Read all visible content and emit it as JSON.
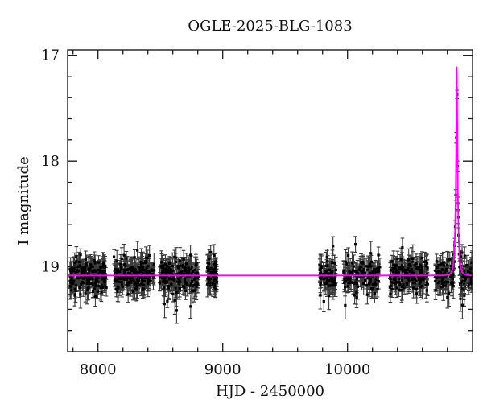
{
  "title": "OGLE-2025-BLG-1083",
  "axes": {
    "xlabel": "HJD - 2450000",
    "ylabel": "I magnitude",
    "x_range": [
      7757,
      11002
    ],
    "x_major_ticks": [
      8000,
      9000,
      10000
    ],
    "x_minor_step": 200,
    "y_range": [
      16.95,
      19.8
    ],
    "y_major_ticks": [
      17,
      18,
      19
    ],
    "y_minor_step": 0.2,
    "y_axis_note": "magnitude axis, brighter (smaller mag) is up"
  },
  "colors": {
    "background": "#ffffff",
    "frame": "#1c1c1c",
    "marker": "#000000",
    "error_bar": "#3a3a3a",
    "model_curve": "#ff00ff",
    "text": "#111111"
  },
  "chart_data": {
    "type": "scatter",
    "title": "OGLE-2025-BLG-1083",
    "xlabel": "HJD - 2450000",
    "ylabel": "I magnitude",
    "xlim": [
      7757,
      11002
    ],
    "ylim": [
      19.8,
      16.95
    ],
    "marker_style": "black filled squares with dark-gray error bars",
    "baseline_mag": 19.08,
    "scatter_sigma_mag": 0.075,
    "error_bar_mag_range": [
      0.05,
      0.13
    ],
    "outlier_fraction": 0.04,
    "random_seed": 7,
    "model": {
      "type": "paczynski-microlensing",
      "t0": 10876,
      "tE": 17,
      "u0": 0.165,
      "baseline_mag": 19.08,
      "peak_mag": 17.11
    },
    "seasons": [
      {
        "start": 7775,
        "end": 8068,
        "n": 170
      },
      {
        "start": 8128,
        "end": 8452,
        "n": 180
      },
      {
        "start": 8490,
        "end": 8806,
        "n": 170
      },
      {
        "start": 8877,
        "end": 8957,
        "n": 55
      },
      {
        "start": 9776,
        "end": 9908,
        "n": 70
      },
      {
        "start": 9968,
        "end": 10262,
        "n": 120
      },
      {
        "start": 10340,
        "end": 10648,
        "n": 150
      },
      {
        "start": 10702,
        "end": 10998,
        "n": 145
      }
    ],
    "event_skip_halfwidth_days": 23,
    "event_points": [
      {
        "hjd": 10878.2,
        "mag": 17.37,
        "err": 0.04
      },
      {
        "hjd": 10871.5,
        "mag": 17.78,
        "err": 0.05
      },
      {
        "hjd": 10882.4,
        "mag": 18.05,
        "err": 0.05
      },
      {
        "hjd": 10867.1,
        "mag": 18.32,
        "err": 0.05
      },
      {
        "hjd": 10885.8,
        "mag": 18.4,
        "err": 0.06
      },
      {
        "hjd": 10887.6,
        "mag": 18.53,
        "err": 0.06
      },
      {
        "hjd": 10863.0,
        "mag": 18.62,
        "err": 0.06
      },
      {
        "hjd": 10890.5,
        "mag": 18.7,
        "err": 0.07
      },
      {
        "hjd": 10859.2,
        "mag": 18.8,
        "err": 0.07
      },
      {
        "hjd": 10894.0,
        "mag": 18.88,
        "err": 0.07
      },
      {
        "hjd": 10856.5,
        "mag": 18.95,
        "err": 0.08
      },
      {
        "hjd": 10897.5,
        "mag": 19.0,
        "err": 0.08
      },
      {
        "hjd": 10905.0,
        "mag": 19.3,
        "err": 0.12
      },
      {
        "hjd": 10910.0,
        "mag": 19.15,
        "err": 0.1
      },
      {
        "hjd": 10921.0,
        "mag": 19.36,
        "err": 0.13
      },
      {
        "hjd": 10936.0,
        "mag": 19.27,
        "err": 0.1
      }
    ]
  }
}
